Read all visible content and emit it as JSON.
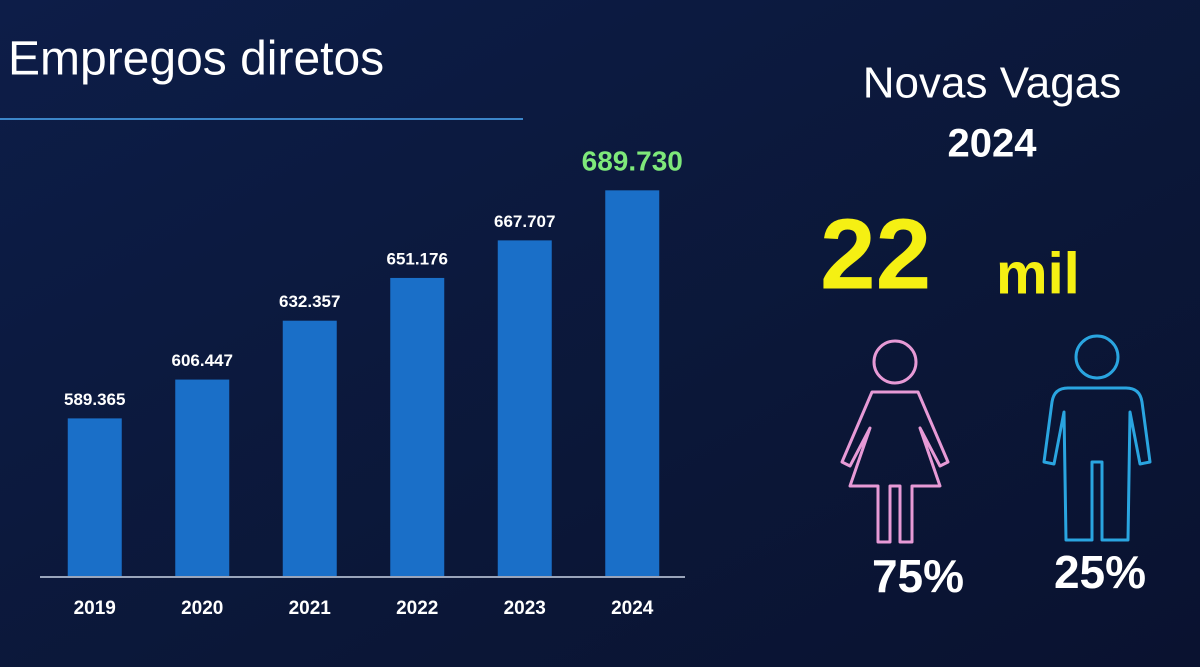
{
  "chart_data": {
    "type": "bar",
    "title": "Empregos diretos",
    "categories": [
      "2019",
      "2020",
      "2021",
      "2022",
      "2023",
      "2024"
    ],
    "values": [
      589365,
      606447,
      632357,
      651176,
      667707,
      689730
    ],
    "value_labels": [
      "589.365",
      "606.447",
      "632.357",
      "651.176",
      "667.707",
      "689.730"
    ],
    "value_label_colors": [
      "#ffffff",
      "#ffffff",
      "#ffffff",
      "#ffffff",
      "#ffffff",
      "#7ee87a"
    ],
    "color": "#1a6fc8",
    "ylim": [
      520000,
      700000
    ]
  },
  "panel": {
    "title": "Novas Vagas",
    "year": "2024",
    "number": "22",
    "unit": "mil",
    "female_share": "75%",
    "male_share": "25%"
  }
}
